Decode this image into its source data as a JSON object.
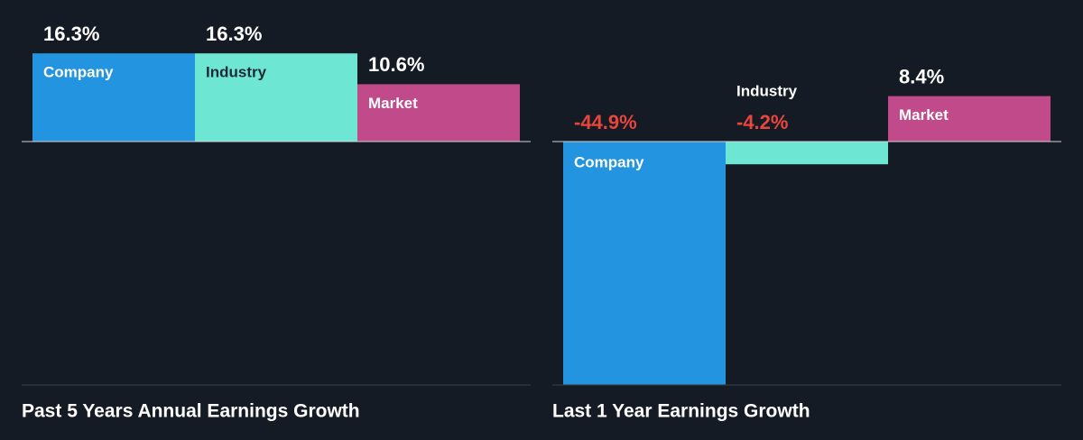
{
  "chart_data": [
    {
      "type": "bar",
      "title": "Past 5 Years Annual Earnings Growth",
      "categories": [
        "Company",
        "Industry",
        "Market"
      ],
      "values": [
        16.3,
        16.3,
        10.6
      ],
      "value_labels": [
        "16.3%",
        "16.3%",
        "10.6%"
      ],
      "colors": [
        "#2394df",
        "#6ee6d4",
        "#c04a8a"
      ]
    },
    {
      "type": "bar",
      "title": "Last 1 Year Earnings Growth",
      "categories": [
        "Company",
        "Industry",
        "Market"
      ],
      "values": [
        -44.9,
        -4.2,
        8.4
      ],
      "value_labels": [
        "-44.9%",
        "-4.2%",
        "8.4%"
      ],
      "colors": [
        "#2394df",
        "#6ee6d4",
        "#c04a8a"
      ]
    }
  ]
}
